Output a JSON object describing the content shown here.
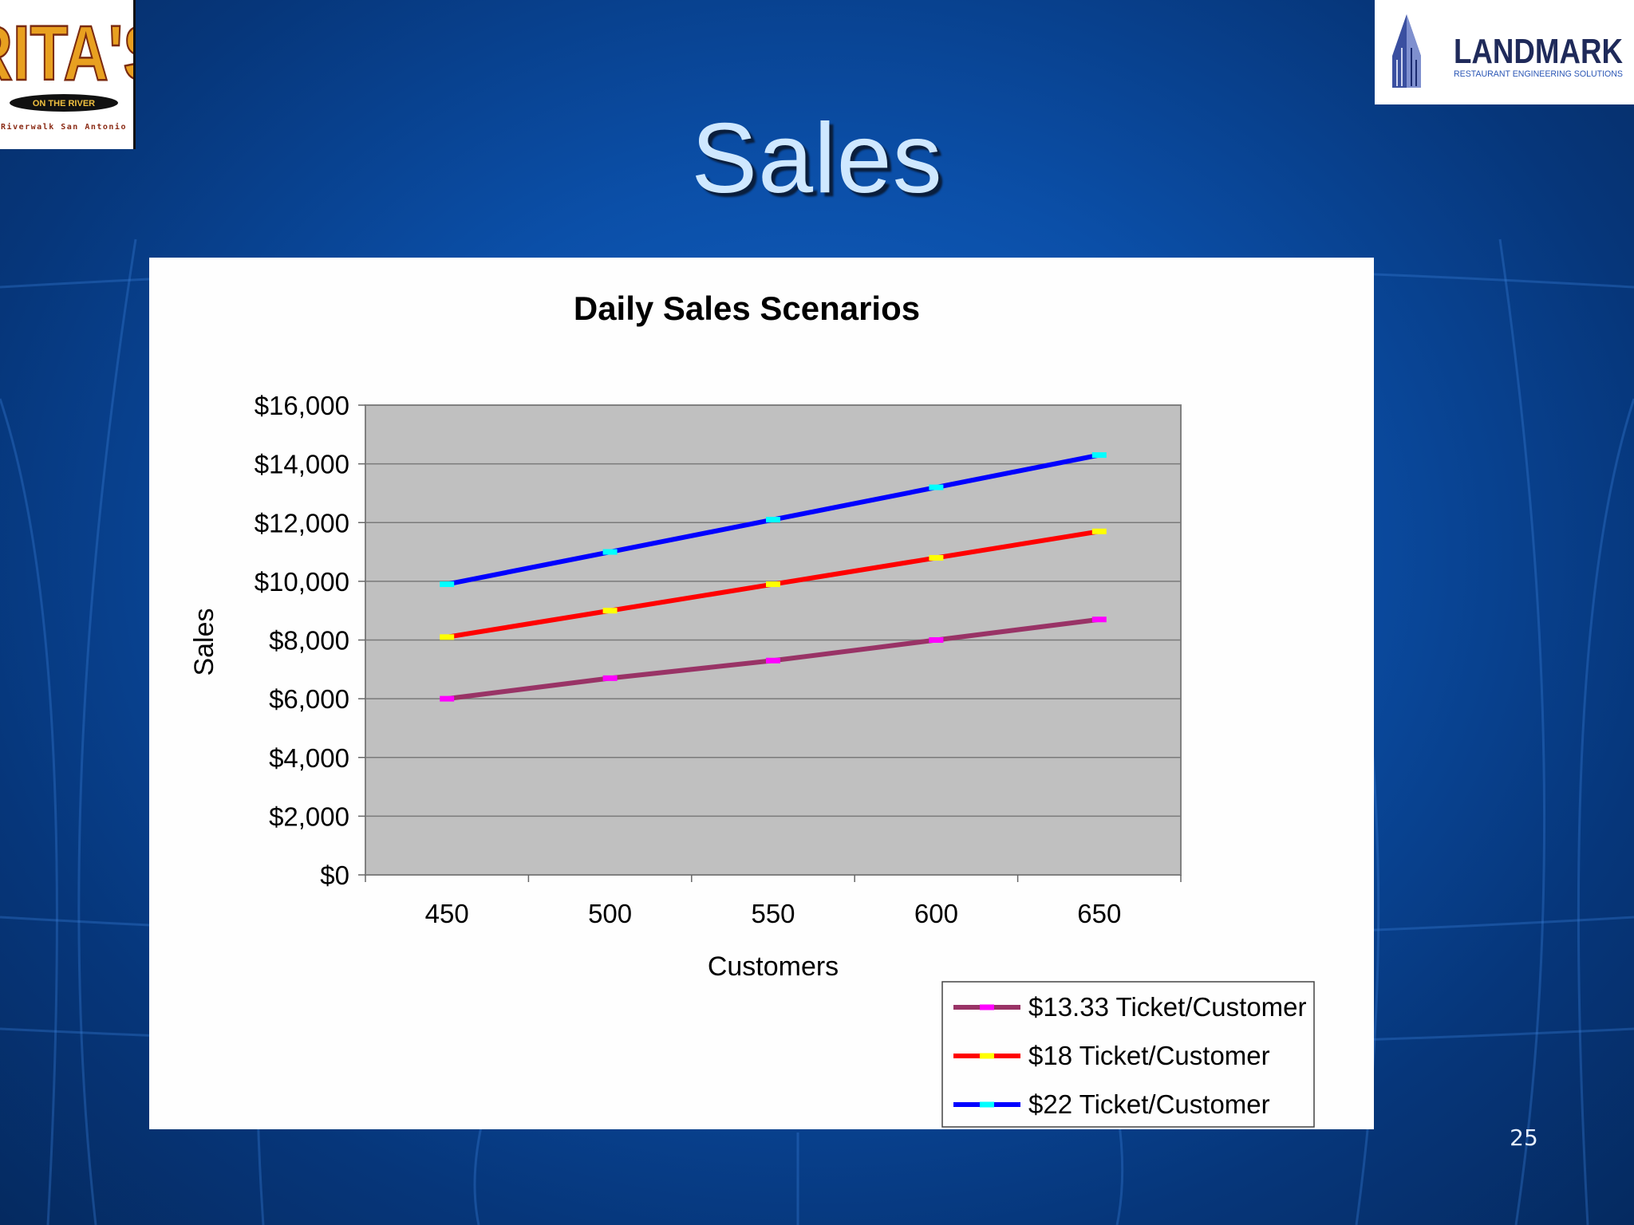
{
  "slide": {
    "title": "Sales",
    "page_number": "25"
  },
  "logos": {
    "left": {
      "name": "RITA'S",
      "tagline": "ON THE RIVER",
      "location": "Riverwalk San Antonio"
    },
    "right": {
      "name": "LANDMARK",
      "tagline": "RESTAURANT ENGINEERING SOLUTIONS"
    }
  },
  "chart_data": {
    "type": "line",
    "title": "Daily Sales Scenarios",
    "xlabel": "Customers",
    "ylabel": "Sales",
    "categories": [
      "450",
      "500",
      "550",
      "600",
      "650"
    ],
    "ylim": [
      0,
      16000
    ],
    "y_ticks": [
      "$0",
      "$2,000",
      "$4,000",
      "$6,000",
      "$8,000",
      "$10,000",
      "$12,000",
      "$14,000",
      "$16,000"
    ],
    "plot_background": "#c0c0c0",
    "grid": true,
    "legend_position": "bottom-right",
    "series": [
      {
        "name": "$13.33 Ticket/Customer",
        "values": [
          6000,
          6700,
          7300,
          8000,
          8700
        ],
        "color": "#993366",
        "marker_color": "#ff00ff"
      },
      {
        "name": "$18 Ticket/Customer",
        "values": [
          8100,
          9000,
          9900,
          10800,
          11700
        ],
        "color": "#ff0000",
        "marker_color": "#ffff00"
      },
      {
        "name": "$22 Ticket/Customer",
        "values": [
          9900,
          11000,
          12100,
          13200,
          14300
        ],
        "color": "#0000ff",
        "marker_color": "#00ffff"
      }
    ]
  }
}
